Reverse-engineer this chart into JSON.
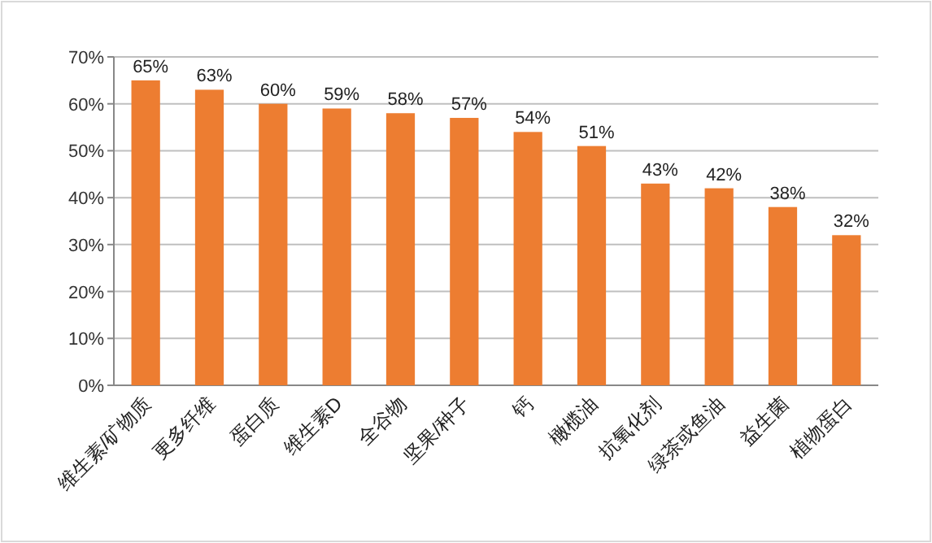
{
  "chart_data": {
    "type": "bar",
    "categories": [
      "维生素/矿物质",
      "更多纤维",
      "蛋白质",
      "维生素D",
      "全谷物",
      "坚果/种子",
      "钙",
      "橄榄油",
      "抗氧化剂",
      "绿茶或鱼油",
      "益生菌",
      "植物蛋白"
    ],
    "values": [
      65,
      63,
      60,
      59,
      58,
      57,
      54,
      51,
      43,
      42,
      38,
      32
    ],
    "value_labels": [
      "65%",
      "63%",
      "60%",
      "59%",
      "58%",
      "57%",
      "54%",
      "51%",
      "43%",
      "42%",
      "38%",
      "32%"
    ],
    "color": "#ed7d31",
    "ylim": [
      0,
      70
    ],
    "yticks": [
      {
        "value": 0,
        "label": "0%"
      },
      {
        "value": 10,
        "label": "10%"
      },
      {
        "value": 20,
        "label": "20%"
      },
      {
        "value": 30,
        "label": "30%"
      },
      {
        "value": 40,
        "label": "40%"
      },
      {
        "value": 50,
        "label": "50%"
      },
      {
        "value": 60,
        "label": "60%"
      },
      {
        "value": 70,
        "label": "70%"
      }
    ],
    "grid": "y"
  }
}
